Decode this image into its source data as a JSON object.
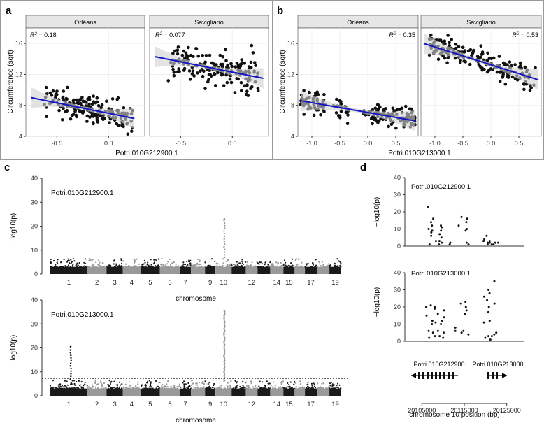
{
  "panels": {
    "a": {
      "letter": "a",
      "facets": [
        {
          "strip": "Orléans",
          "r2": "0.18"
        },
        {
          "strip": "Savigliano",
          "r2": "0.077"
        }
      ],
      "xlabel": "Potri.010G212900.1",
      "ylabel": "Circumference (sqrt)"
    },
    "b": {
      "letter": "b",
      "facets": [
        {
          "strip": "Orléans",
          "r2": "0.35"
        },
        {
          "strip": "Savigliano",
          "r2": "0.53"
        }
      ],
      "xlabel": "Potri.010G213000.1",
      "ylabel": "Circumference (sqrt)"
    },
    "c": {
      "letter": "c",
      "top_gene": "Potri.010G212900.1",
      "bottom_gene": "Potri.010G213000.1",
      "xlabel": "chromosome",
      "ylabel": "−log10(p)"
    },
    "d": {
      "letter": "d",
      "top_gene": "Potri.010G212900.1",
      "bottom_gene": "Potri.010G213000.1",
      "gene_track_labels": [
        "Potri.010G212900",
        "Potri.010G213000"
      ],
      "xlabel": "chromosome 10 position (bp)",
      "ylabel": "−log10(p)"
    }
  },
  "colors": {
    "point": "#111111",
    "fit_line": "#1414c8",
    "ci_band": "#d0d0d0",
    "strip_bg": "#e6e6e6",
    "chr_dark": "#1a1a1a",
    "chr_light": "#999999",
    "threshold": "#333333"
  },
  "chart_data": [
    {
      "id": "a-orleans",
      "type": "scatter",
      "title": "Orléans",
      "annotation": "R² = 0.18",
      "xlabel": "Potri.010G212900.1",
      "ylabel": "Circumference (sqrt)",
      "xlim": [
        -0.8,
        0.35
      ],
      "ylim": [
        4,
        18
      ],
      "xticks": [
        -0.5,
        0.0
      ],
      "xtick_labels": [
        "-0.5",
        "0.0"
      ],
      "yticks": [
        4,
        8,
        12,
        16
      ],
      "fit": {
        "x": [
          -0.75,
          0.25
        ],
        "y": [
          9.0,
          6.3
        ]
      },
      "n_points": 180
    },
    {
      "id": "a-savigliano",
      "type": "scatter",
      "title": "Savigliano",
      "annotation": "R² = 0.077",
      "xlabel": "Potri.010G212900.1",
      "ylabel": "",
      "xlim": [
        -0.8,
        0.35
      ],
      "ylim": [
        4,
        18
      ],
      "xticks": [
        -0.5,
        0.0
      ],
      "xtick_labels": [
        "-0.5",
        "0.0"
      ],
      "fit": {
        "x": [
          -0.75,
          0.3
        ],
        "y": [
          14.3,
          11.5
        ]
      },
      "n_points": 180
    },
    {
      "id": "b-orleans",
      "type": "scatter",
      "title": "Orléans",
      "annotation": "R² = 0.35",
      "xlabel": "Potri.010G213000.1",
      "ylabel": "Circumference (sqrt)",
      "xlim": [
        -1.25,
        0.9
      ],
      "ylim": [
        4,
        18
      ],
      "xticks": [
        -1.0,
        -0.5,
        0.0,
        0.5
      ],
      "xtick_labels": [
        "-1.0",
        "-0.5",
        "0.0",
        "0.5"
      ],
      "yticks": [
        4,
        8,
        12,
        16
      ],
      "fit": {
        "x": [
          -1.2,
          0.85
        ],
        "y": [
          8.6,
          6.0
        ]
      },
      "n_points": 200
    },
    {
      "id": "b-savigliano",
      "type": "scatter",
      "title": "Savigliano",
      "annotation": "R² = 0.53",
      "xlabel": "Potri.010G213000.1",
      "ylabel": "",
      "xlim": [
        -1.25,
        0.9
      ],
      "ylim": [
        4,
        18
      ],
      "xticks": [
        -1.0,
        -0.5,
        0.0,
        0.5
      ],
      "xtick_labels": [
        "-1.0",
        "-0.5",
        "0.0",
        "0.5"
      ],
      "fit": {
        "x": [
          -1.2,
          0.85
        ],
        "y": [
          16.0,
          11.3
        ]
      },
      "n_points": 200
    },
    {
      "id": "c-top",
      "type": "scatter",
      "title": "Potri.010G212900.1",
      "xlabel": "chromosome",
      "ylabel": "−log10(p)",
      "ylim": [
        0,
        40
      ],
      "yticks": [
        0,
        10,
        20,
        30,
        40
      ],
      "chromosomes": [
        "1",
        "2",
        "3",
        "4",
        "5",
        "6",
        "7",
        "8",
        "9",
        "10",
        "11",
        "12",
        "13",
        "14",
        "15",
        "16",
        "17",
        "18",
        "19"
      ],
      "chromosome_tick_labels": [
        "1",
        "2",
        "3",
        "4",
        "5",
        "6",
        "7",
        "9",
        "10",
        "12",
        "14",
        "15",
        "17",
        "19"
      ],
      "threshold": 7.2,
      "peaks": [
        {
          "chromosome": "10",
          "max": 23
        }
      ]
    },
    {
      "id": "c-bottom",
      "type": "scatter",
      "title": "Potri.010G213000.1",
      "xlabel": "chromosome",
      "ylabel": "−log10(p)",
      "ylim": [
        0,
        40
      ],
      "yticks": [
        0,
        10,
        20,
        30,
        40
      ],
      "chromosomes": [
        "1",
        "2",
        "3",
        "4",
        "5",
        "6",
        "7",
        "8",
        "9",
        "10",
        "11",
        "12",
        "13",
        "14",
        "15",
        "16",
        "17",
        "18",
        "19"
      ],
      "chromosome_tick_labels": [
        "1",
        "2",
        "3",
        "4",
        "5",
        "6",
        "7",
        "9",
        "10",
        "12",
        "14",
        "15",
        "17",
        "19"
      ],
      "threshold": 7.2,
      "peaks": [
        {
          "chromosome": "1",
          "max": 20.5
        },
        {
          "chromosome": "10",
          "max": 35.5
        }
      ]
    },
    {
      "id": "d-top",
      "type": "scatter",
      "title": "Potri.010G212900.1",
      "ylabel": "−log10(p)",
      "xlim": [
        20101000,
        20129000
      ],
      "ylim": [
        0,
        40
      ],
      "yticks": [
        0,
        10,
        20,
        30,
        40
      ],
      "threshold": 7.2
    },
    {
      "id": "d-bottom",
      "type": "scatter",
      "title": "Potri.010G213000.1",
      "xlabel": "chromosome 10 position (bp)",
      "ylabel": "−log10(p)",
      "xlim": [
        20101000,
        20129000
      ],
      "ylim": [
        0,
        40
      ],
      "yticks": [
        0,
        10,
        20,
        30,
        40
      ],
      "xticks": [
        20105000,
        20115000,
        20125000
      ],
      "xtick_labels": [
        "20105000",
        "20115000",
        "20125000"
      ],
      "threshold": 7.2
    }
  ]
}
